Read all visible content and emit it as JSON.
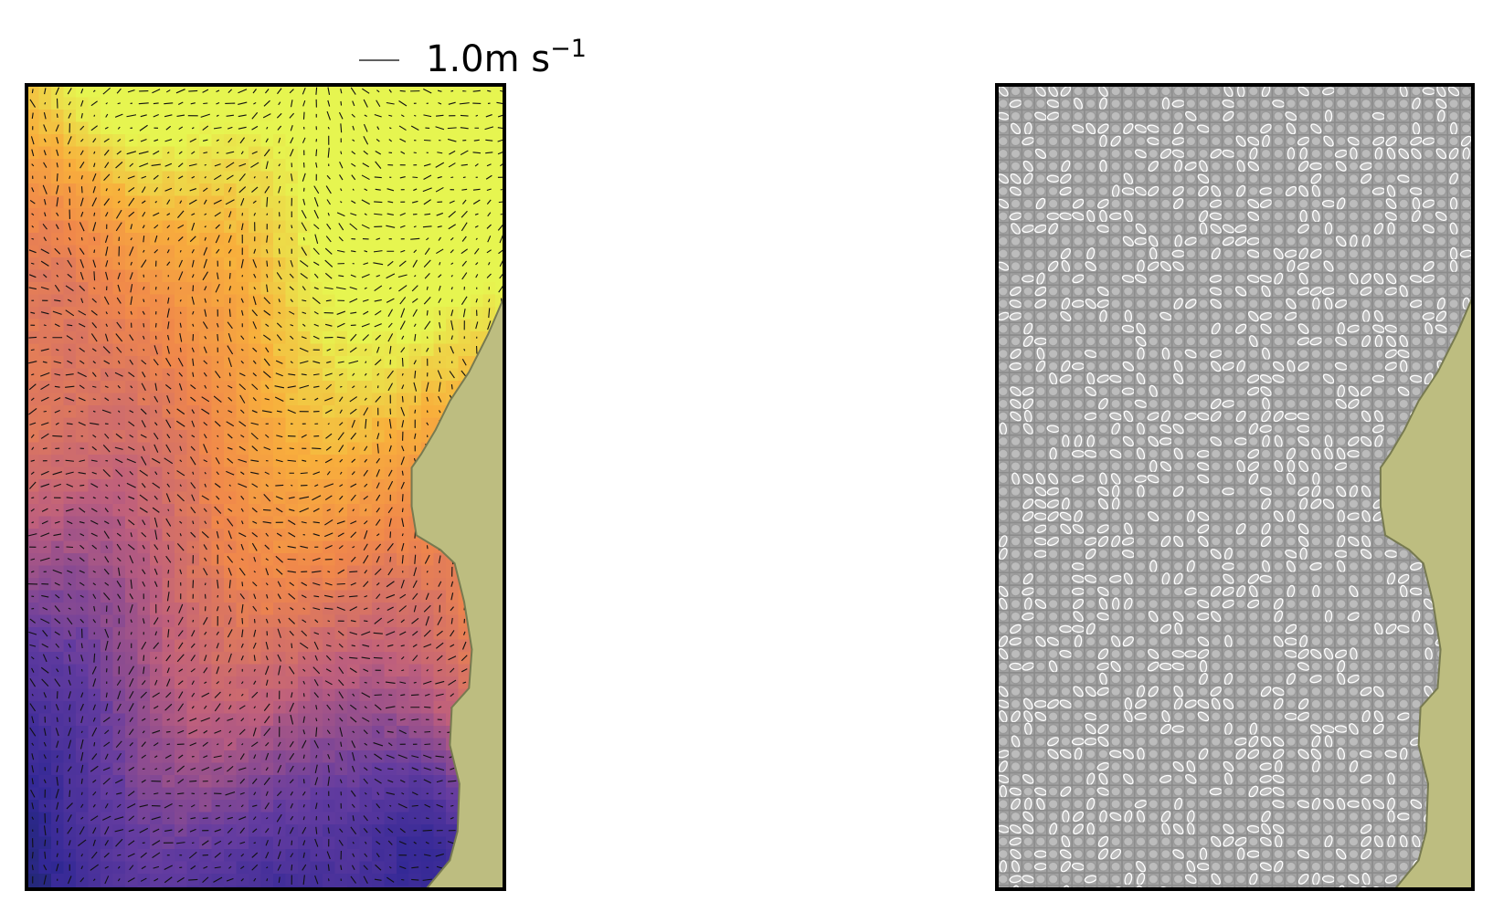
{
  "quiver_key": {
    "label": "1.0m s",
    "superscript": "−1"
  }
}
